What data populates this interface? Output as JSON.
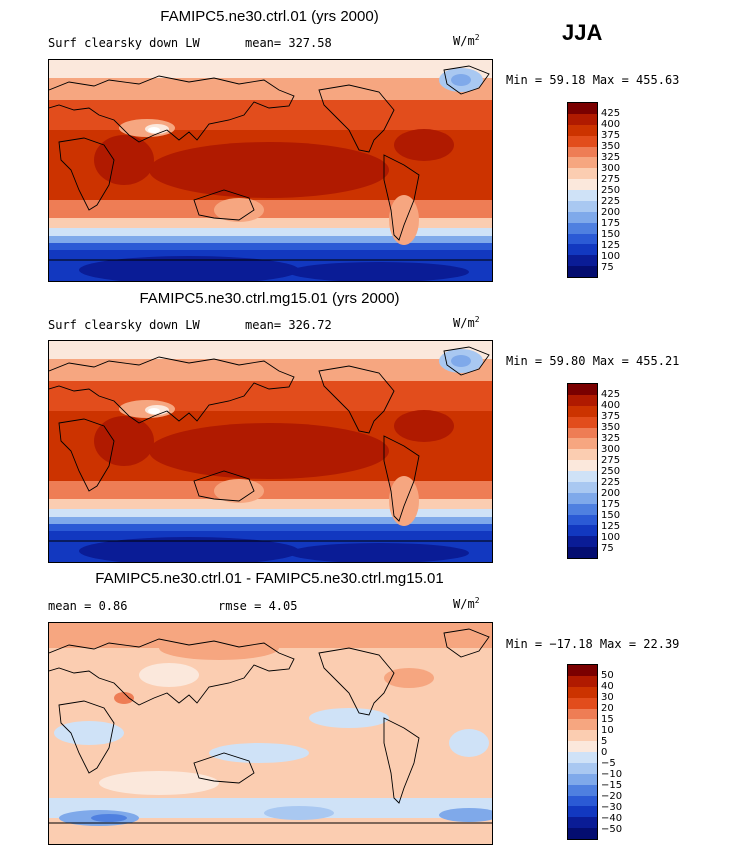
{
  "season": "JJA",
  "units_base": "W/m",
  "units_exp": "2",
  "panels": [
    {
      "title": "FAMIPC5.ne30.ctrl.01 (yrs 2000)",
      "left_label": "Surf clearsky down LW",
      "stat_text": "mean= 327.58",
      "minmax_text": "Min =   59.18 Max = 455.63"
    },
    {
      "title": "FAMIPC5.ne30.ctrl.mg15.01 (yrs 2000)",
      "left_label": "Surf clearsky down LW",
      "stat_text": "mean= 326.72",
      "minmax_text": "Min =   59.80 Max = 455.21"
    },
    {
      "title": "FAMIPC5.ne30.ctrl.01 - FAMIPC5.ne30.ctrl.mg15.01",
      "left_label": "mean =    0.86",
      "stat_text": "rmse =   4.05",
      "minmax_text": "Min = −17.18 Max =  22.39"
    }
  ],
  "chart_data": [
    {
      "type": "heatmap",
      "title": "FAMIPC5.ne30.ctrl.01 (yrs 2000)",
      "variable": "Surf clearsky down LW",
      "units": "W/m2",
      "mean": 327.58,
      "min": 59.18,
      "max": 455.63,
      "colorbar_levels": [
        425,
        400,
        375,
        350,
        325,
        300,
        275,
        250,
        225,
        200,
        175,
        150,
        125,
        100,
        75
      ],
      "colors": [
        "#7a0000",
        "#b01a00",
        "#cc3300",
        "#e24d1c",
        "#ee7d55",
        "#f6a680",
        "#fbcdb1",
        "#fbe8dc",
        "#cfe2f7",
        "#a9c8f1",
        "#7fa9ea",
        "#4f80e0",
        "#2b5ad5",
        "#1238c0",
        "#0a1c96",
        "#040d70"
      ]
    },
    {
      "type": "heatmap",
      "title": "FAMIPC5.ne30.ctrl.mg15.01 (yrs 2000)",
      "variable": "Surf clearsky down LW",
      "units": "W/m2",
      "mean": 326.72,
      "min": 59.8,
      "max": 455.21,
      "colorbar_levels": [
        425,
        400,
        375,
        350,
        325,
        300,
        275,
        250,
        225,
        200,
        175,
        150,
        125,
        100,
        75
      ],
      "colors": [
        "#7a0000",
        "#b01a00",
        "#cc3300",
        "#e24d1c",
        "#ee7d55",
        "#f6a680",
        "#fbcdb1",
        "#fbe8dc",
        "#cfe2f7",
        "#a9c8f1",
        "#7fa9ea",
        "#4f80e0",
        "#2b5ad5",
        "#1238c0",
        "#0a1c96",
        "#040d70"
      ]
    },
    {
      "type": "heatmap",
      "title": "FAMIPC5.ne30.ctrl.01 - FAMIPC5.ne30.ctrl.mg15.01",
      "units": "W/m2",
      "mean": 0.86,
      "rmse": 4.05,
      "min": -17.18,
      "max": 22.39,
      "colorbar_levels": [
        50,
        40,
        30,
        20,
        15,
        10,
        5,
        0,
        -5,
        -10,
        -15,
        -20,
        -30,
        -40,
        -50
      ],
      "colorbar_labels": [
        "50",
        "40",
        "30",
        "20",
        "15",
        "10",
        "5",
        "0",
        "−5",
        "−10",
        "−15",
        "−20",
        "−30",
        "−40",
        "−50"
      ],
      "colors": [
        "#7a0000",
        "#b01a00",
        "#cc3300",
        "#e24d1c",
        "#ee7d55",
        "#f6a680",
        "#fbcdb1",
        "#fbe8dc",
        "#cfe2f7",
        "#a9c8f1",
        "#7fa9ea",
        "#4f80e0",
        "#2b5ad5",
        "#1238c0",
        "#0a1c96",
        "#040d70"
      ]
    }
  ]
}
